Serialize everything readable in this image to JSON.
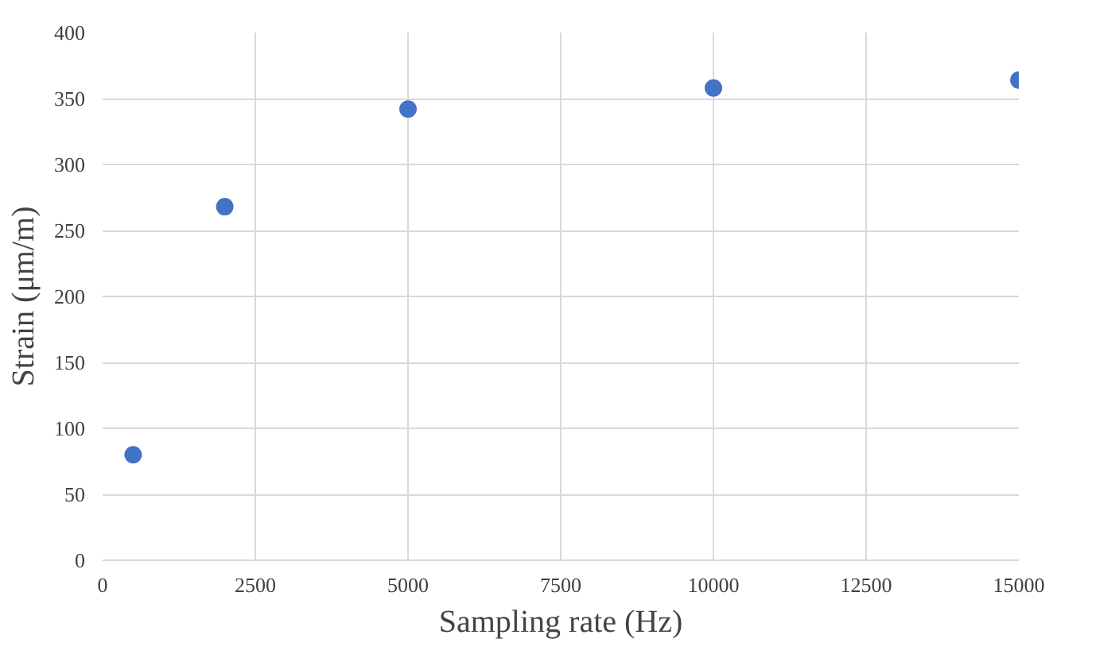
{
  "chart_data": {
    "type": "scatter",
    "xlabel": "Sampling rate (Hz)",
    "ylabel": "Strain (μm/m)",
    "x": [
      500,
      2000,
      5000,
      10000,
      15000
    ],
    "values": [
      80,
      268,
      342,
      358,
      364
    ],
    "color": "#4472c4",
    "marker": "circle",
    "xlim": [
      0,
      15000
    ],
    "xticks": [
      0,
      2500,
      5000,
      7500,
      10000,
      12500,
      15000
    ],
    "ylim": [
      0,
      400
    ],
    "yticks": [
      0,
      50,
      100,
      150,
      200,
      250,
      300,
      350,
      400
    ],
    "grid": true
  }
}
